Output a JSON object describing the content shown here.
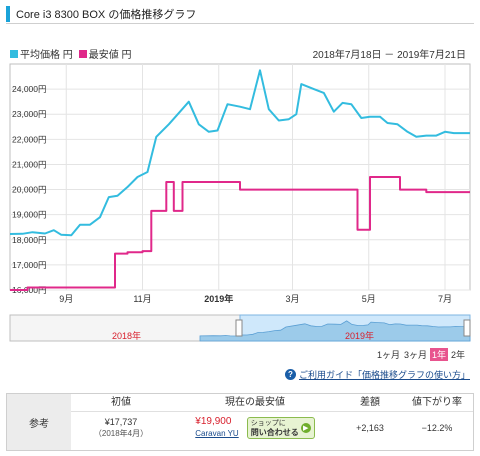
{
  "header": {
    "title": "Core i3 8300 BOX の価格推移グラフ"
  },
  "legend": {
    "avg_label": "平均価格 円",
    "min_label": "最安値 円"
  },
  "range_label": "2018年7月18日 － 2019年7月21日",
  "colors": {
    "avg": "#33bcdf",
    "min": "#e0288a",
    "accent": "#1aa3d9"
  },
  "chart_data": {
    "type": "line",
    "x_domain": [
      "2018-07-18",
      "2019-07-21"
    ],
    "ylim": [
      16000,
      25000
    ],
    "yticks": [
      "16,000円",
      "17,000円",
      "18,000円",
      "19,000円",
      "20,000円",
      "21,000円",
      "22,000円",
      "23,000円",
      "24,000円"
    ],
    "xticks": [
      {
        "label": "9月",
        "x": "2018-09-01"
      },
      {
        "label": "11月",
        "x": "2018-11-01"
      },
      {
        "label": "2019年",
        "x": "2019-01-01",
        "bold": true
      },
      {
        "label": "3月",
        "x": "2019-03-01"
      },
      {
        "label": "5月",
        "x": "2019-05-01"
      },
      {
        "label": "7月",
        "x": "2019-07-01"
      }
    ],
    "grid": true,
    "series": [
      {
        "name": "平均価格",
        "points": [
          [
            "2018-07-18",
            18230
          ],
          [
            "2018-07-28",
            18240
          ],
          [
            "2018-08-05",
            18300
          ],
          [
            "2018-08-15",
            18250
          ],
          [
            "2018-08-22",
            18380
          ],
          [
            "2018-08-28",
            18200
          ],
          [
            "2018-09-05",
            18180
          ],
          [
            "2018-09-12",
            18600
          ],
          [
            "2018-09-20",
            18600
          ],
          [
            "2018-09-28",
            18900
          ],
          [
            "2018-10-05",
            19700
          ],
          [
            "2018-10-12",
            19750
          ],
          [
            "2018-10-20",
            20100
          ],
          [
            "2018-10-28",
            20500
          ],
          [
            "2018-11-05",
            20700
          ],
          [
            "2018-11-12",
            22100
          ],
          [
            "2018-11-22",
            22600
          ],
          [
            "2018-12-01",
            23100
          ],
          [
            "2018-12-08",
            23500
          ],
          [
            "2018-12-16",
            22600
          ],
          [
            "2018-12-24",
            22300
          ],
          [
            "2018-12-31",
            22350
          ],
          [
            "2019-01-08",
            23400
          ],
          [
            "2019-01-18",
            23300
          ],
          [
            "2019-01-26",
            23200
          ],
          [
            "2019-02-03",
            24750
          ],
          [
            "2019-02-10",
            23200
          ],
          [
            "2019-02-18",
            22750
          ],
          [
            "2019-02-26",
            22800
          ],
          [
            "2019-03-04",
            23000
          ],
          [
            "2019-03-08",
            24200
          ],
          [
            "2019-03-18",
            24000
          ],
          [
            "2019-03-26",
            23850
          ],
          [
            "2019-04-03",
            23100
          ],
          [
            "2019-04-10",
            23450
          ],
          [
            "2019-04-17",
            23400
          ],
          [
            "2019-04-25",
            22850
          ],
          [
            "2019-05-02",
            22900
          ],
          [
            "2019-05-10",
            22900
          ],
          [
            "2019-05-16",
            22650
          ],
          [
            "2019-05-24",
            22600
          ],
          [
            "2019-06-01",
            22300
          ],
          [
            "2019-06-08",
            22100
          ],
          [
            "2019-06-16",
            22150
          ],
          [
            "2019-06-24",
            22150
          ],
          [
            "2019-07-01",
            22300
          ],
          [
            "2019-07-08",
            22250
          ],
          [
            "2019-07-21",
            22250
          ]
        ]
      },
      {
        "name": "最安値",
        "step": true,
        "points": [
          [
            "2018-07-18",
            16000
          ],
          [
            "2018-08-01",
            16100
          ],
          [
            "2018-10-10",
            17450
          ],
          [
            "2018-10-20",
            17500
          ],
          [
            "2018-11-01",
            17550
          ],
          [
            "2018-11-08",
            19150
          ],
          [
            "2018-11-20",
            20300
          ],
          [
            "2018-11-26",
            19150
          ],
          [
            "2018-12-03",
            20300
          ],
          [
            "2019-01-18",
            20000
          ],
          [
            "2019-04-22",
            18400
          ],
          [
            "2019-05-02",
            20500
          ],
          [
            "2019-05-26",
            20000
          ],
          [
            "2019-06-16",
            19900
          ],
          [
            "2019-07-21",
            19900
          ]
        ]
      }
    ]
  },
  "navigator": {
    "label_2018": "2018年",
    "label_2019": "2019年"
  },
  "periods": {
    "p1m": "1ヶ月",
    "p3m": "3ヶ月",
    "p1y": "1年",
    "p2y": "2年"
  },
  "guide": {
    "icon": "?",
    "text": "ご利用ガイド「価格推移グラフの使い方」"
  },
  "summary": {
    "row_label": "参考",
    "initial": {
      "header": "初値",
      "value": "¥17,737",
      "note": "（2018年4月）"
    },
    "current": {
      "header": "現在の最安値",
      "value": "¥19,900",
      "shop": "Caravan YU",
      "btn_line1": "ショップに",
      "btn_line2": "問い合わせる"
    },
    "diff": {
      "header": "差額",
      "value": "+2,163"
    },
    "drop": {
      "header": "値下がり率",
      "value": "−12.2%"
    }
  }
}
